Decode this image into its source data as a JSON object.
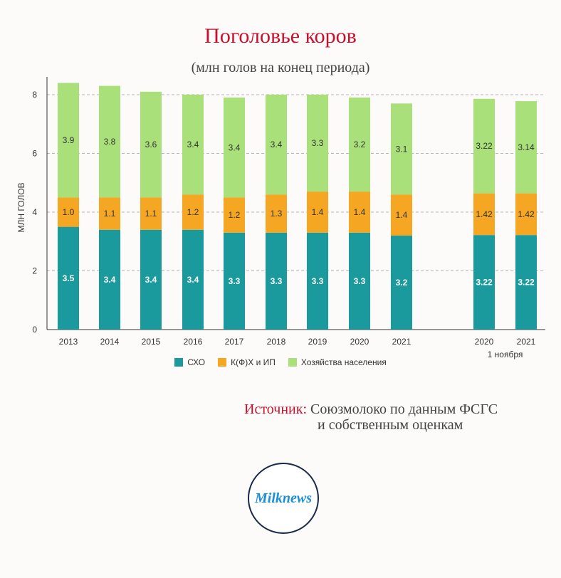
{
  "title": "Поголовье коров",
  "subtitle": "(млн голов на конец периода)",
  "source_label": "Источник:",
  "source_line1": "Союзмолоко по данным ФСГС",
  "source_line2": "и собственным оценкам",
  "logo_text": "Milknews",
  "colors": {
    "sxo": "#1a9a9c",
    "kfx": "#f5a623",
    "households": "#a9e07a"
  },
  "chart_data": {
    "type": "bar",
    "stacked": true,
    "ylabel": "МЛН ГОЛОВ",
    "ylim": [
      0,
      8.8
    ],
    "yticks": [
      0,
      2,
      4,
      6,
      8
    ],
    "grid": true,
    "legend_position": "bottom",
    "categories": [
      "2013",
      "2014",
      "2015",
      "2016",
      "2017",
      "2018",
      "2019",
      "2020",
      "2021",
      "2020",
      "2021"
    ],
    "category_sublabels": [
      "",
      "",
      "",
      "",
      "",
      "",
      "",
      "",
      "",
      "1 ноября",
      ""
    ],
    "series": [
      {
        "name": "СХО",
        "values": [
          3.5,
          3.4,
          3.4,
          3.4,
          3.3,
          3.3,
          3.3,
          3.3,
          3.2,
          3.22,
          3.22
        ],
        "labels": [
          "3.5",
          "3.4",
          "3.4",
          "3.4",
          "3.3",
          "3.3",
          "3.3",
          "3.3",
          "3.2",
          "3.22",
          "3.22"
        ]
      },
      {
        "name": "К(Ф)Х и ИП",
        "values": [
          1.0,
          1.1,
          1.1,
          1.2,
          1.2,
          1.3,
          1.4,
          1.4,
          1.4,
          1.42,
          1.42
        ],
        "labels": [
          "1.0",
          "1.1",
          "1.1",
          "1.2",
          "1.2",
          "1.3",
          "1.4",
          "1.4",
          "1.4",
          "1.42",
          "1.42"
        ]
      },
      {
        "name": "Хозяйства населения",
        "values": [
          3.9,
          3.8,
          3.6,
          3.4,
          3.4,
          3.4,
          3.3,
          3.2,
          3.1,
          3.22,
          3.14
        ],
        "labels": [
          "3.9",
          "3.8",
          "3.6",
          "3.4",
          "3.4",
          "3.4",
          "3.3",
          "3.2",
          "3.1",
          "3.22",
          "3.14"
        ]
      }
    ]
  }
}
